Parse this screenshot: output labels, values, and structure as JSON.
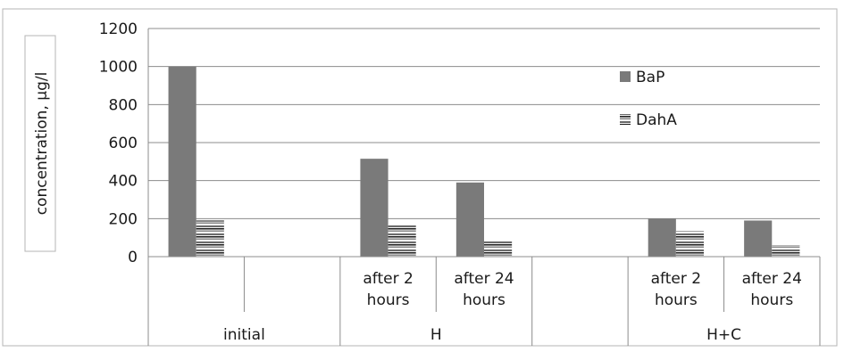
{
  "chart_data": {
    "type": "bar",
    "ylabel": "concentration, µg/l",
    "ylim": [
      0,
      1200
    ],
    "yticks": [
      0,
      200,
      400,
      600,
      800,
      1000,
      1200
    ],
    "grid": true,
    "legend_position": "right",
    "groups": [
      {
        "label": "initial",
        "subcategories": [
          "",
          ""
        ]
      },
      {
        "label": "H",
        "subcategories": [
          "after 2 hours",
          "after 24 hours"
        ]
      },
      {
        "label": "",
        "subcategories": [
          ""
        ]
      },
      {
        "label": "H+C",
        "subcategories": [
          "after 2 hours",
          "after 24 hours"
        ]
      }
    ],
    "categories": [
      "initial",
      "",
      "H after 2 hours",
      "H after 24 hours",
      "",
      "H+C after 2 hours",
      "H+C after 24 hours"
    ],
    "series": [
      {
        "name": "BaP",
        "color": "#7a7a7a",
        "pattern": "solid",
        "values": [
          1000,
          null,
          515,
          390,
          null,
          200,
          190
        ]
      },
      {
        "name": "DahA",
        "color": "#5a5a5a",
        "pattern": "horizontal-stripes",
        "values": [
          190,
          null,
          170,
          85,
          null,
          135,
          60
        ]
      }
    ]
  }
}
